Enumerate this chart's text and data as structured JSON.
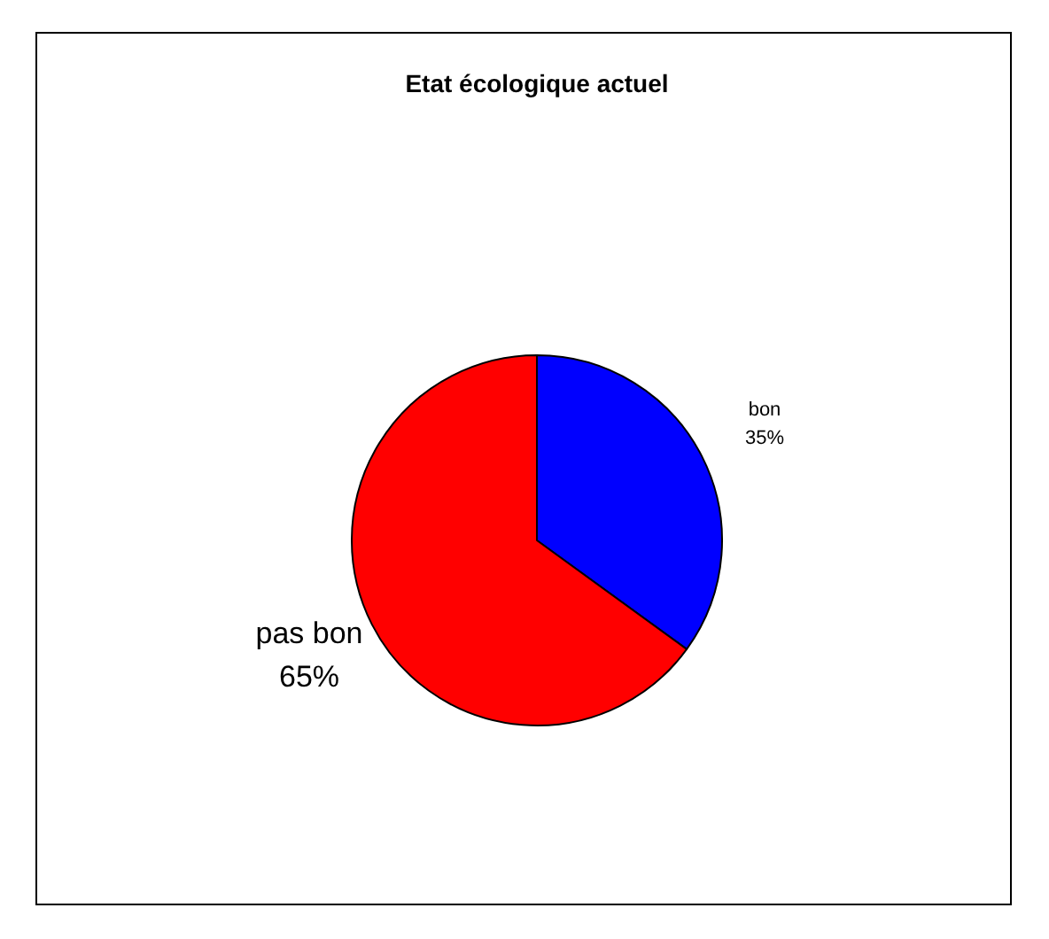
{
  "chart_data": {
    "type": "pie",
    "title": "Etat écologique actuel",
    "categories": [
      "bon",
      "pas bon"
    ],
    "values": [
      35,
      65
    ],
    "colors": [
      "#0000ff",
      "#ff0000"
    ],
    "value_labels": [
      "35%",
      "65%"
    ],
    "legend": false
  }
}
